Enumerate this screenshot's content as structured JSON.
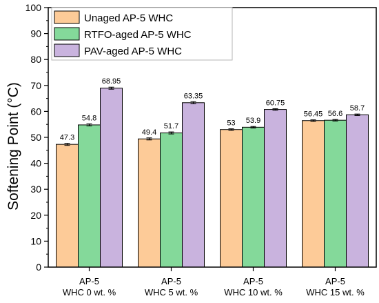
{
  "chart_data": {
    "type": "bar",
    "ylabel": "Softening Point (°C)",
    "ylim": [
      0,
      100
    ],
    "yticks": [
      0,
      10,
      20,
      30,
      40,
      50,
      60,
      70,
      80,
      90,
      100
    ],
    "categories": [
      [
        "AP-5",
        "WHC 0 wt. %"
      ],
      [
        "AP-5",
        "WHC 5 wt. %"
      ],
      [
        "AP-5",
        "WHC 10 wt. %"
      ],
      [
        "AP-5",
        "WHC 15 wt. %"
      ]
    ],
    "series": [
      {
        "name": "Unaged AP-5 WHC",
        "color": "#FDCB98",
        "values": [
          47.3,
          49.4,
          53,
          56.45
        ],
        "labels": [
          "47.3",
          "49.4",
          "53",
          "56.45"
        ],
        "errors": [
          0.4,
          0.4,
          0.3,
          0.3
        ]
      },
      {
        "name": "RTFO-aged AP-5 WHC",
        "color": "#84D99A",
        "values": [
          54.8,
          51.7,
          53.9,
          56.6
        ],
        "labels": [
          "54.8",
          "51.7",
          "53.9",
          "56.6"
        ],
        "errors": [
          0.4,
          0.4,
          0.3,
          0.3
        ]
      },
      {
        "name": "PAV-aged AP-5 WHC",
        "color": "#C9B3DE",
        "values": [
          68.95,
          63.35,
          60.75,
          58.7
        ],
        "labels": [
          "68.95",
          "63.35",
          "60.75",
          "58.7"
        ],
        "errors": [
          0.4,
          0.4,
          0.3,
          0.3
        ]
      }
    ],
    "legend_position": "top-left",
    "grid": false
  }
}
